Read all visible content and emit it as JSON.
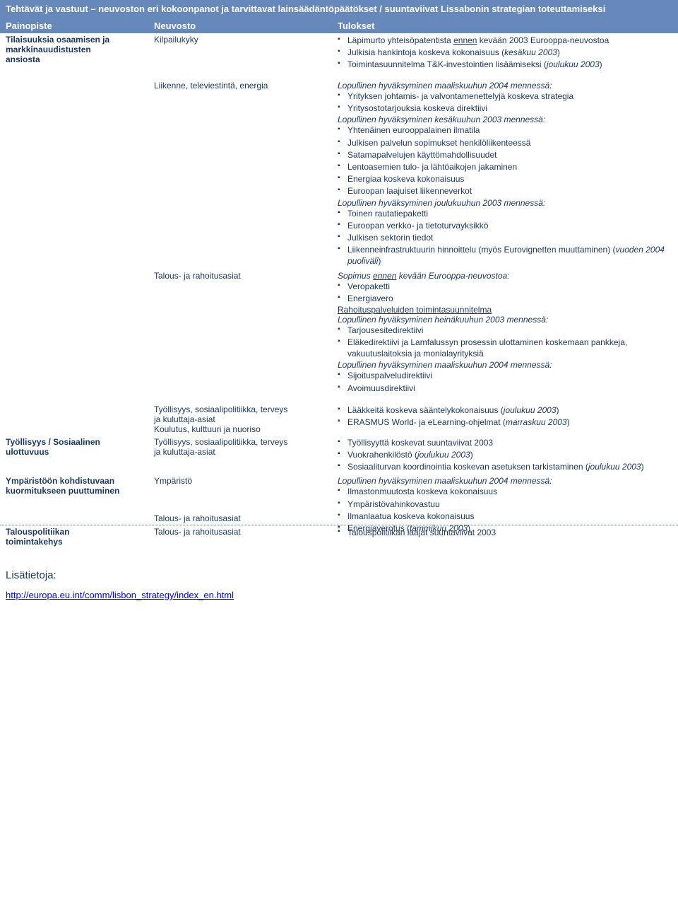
{
  "title": "Tehtävät ja vastuut – neuvoston eri kokoonpanot ja tarvittavat lainsäädäntöpäätökset / suuntaviivat Lissabonin strategian toteuttamiseksi",
  "headers": {
    "c1": "Painopiste",
    "c2": "Neuvosto",
    "c3": "Tulokset"
  },
  "rows": [
    {
      "painopiste_lines": [
        "Tilaisuuksia osaamisen ja",
        "markkinauudistusten",
        "ansiosta"
      ],
      "neuvosto": "Kilpailukyky",
      "tulokset": {
        "type": "bullets",
        "items": [
          {
            "pre": "Läpimurto yhteisöpatentista ",
            "u": "ennen",
            "post": " kevään 2003 Eurooppa-neuvostoa"
          },
          {
            "text": "Julkisia hankintoja koskeva kokonaisuus (",
            "i": "kesäkuu 2003",
            "tail": ")"
          },
          {
            "text": "Toimintasuunnitelma T&K-investointien lisäämiseksi (",
            "i": "joulukuu 2003",
            "tail": ")"
          }
        ]
      }
    },
    {
      "spacer_before": true,
      "painopiste_lines": [],
      "neuvosto": "Liikenne, televiestintä, energia",
      "tulokset": {
        "type": "mixed",
        "lead_i": "Lopullinen hyväksyminen maaliskuuhun 2004 mennessä:",
        "lead_bullets": [
          "Yrityksen johtamis- ja valvontamenettelyjä koskeva strategia",
          "Yritysostotarjouksia koskeva direktiivi"
        ],
        "mid_i": "Lopullinen hyväksyminen kesäkuuhun 2003 mennessä:",
        "mid_bullets": [
          "Yhtenäinen eurooppalainen ilmatila",
          "Julkisen palvelun sopimukset henkilöliikenteessä",
          "Satamapalvelujen käyttömahdollisuudet",
          "Lentoasemien tulo- ja lähtöaikojen jakaminen",
          "Energiaa koskeva kokonaisuus",
          "Euroopan laajuiset liikenneverkot"
        ],
        "tail_i": "Lopullinen hyväksyminen joulukuuhun 2003 mennessä:",
        "tail_bullets": [
          "Toinen rautatiepaketti",
          "Euroopan verkko- ja tietoturvayksikkö",
          "Julkisen sektorin tiedot",
          {
            "text": "Liikenneinfrastruktuurin hinnoittelu (myös Eurovignetten muuttaminen) (",
            "i": "vuoden 2004 puoliväli",
            "tail": ")"
          }
        ]
      }
    },
    {
      "painopiste_lines": [],
      "neuvosto": "Talous- ja rahoitusasiat",
      "tulokset": {
        "type": "sopimus",
        "line1_pre": "Sopimus ",
        "line1_u": "ennen",
        "line1_post": " kevään Eurooppa-neuvostoa:",
        "b1": [
          "Veropaketti",
          "Energiavero"
        ],
        "line2_u": "Rahoituspalveluiden toimintasuunnitelma",
        "line3_i": "Lopullinen hyväksyminen heinäkuuhun 2003 mennessä:",
        "b2": [
          "Tarjousesitedirektiivi",
          "Eläkedirektiivi ja Lamfalussyn prosessin ulottaminen koskemaan pankkeja, vakuutuslaitoksia ja monialayrityksiä"
        ],
        "line4_i": "Lopullinen hyväksyminen maaliskuuhun 2004 mennessä:",
        "b3": [
          "Sijoituspalveludirektiivi",
          "Avoimuusdirektiivi"
        ]
      }
    },
    {
      "spacer_before": true,
      "painopiste_lines": [],
      "neuvosto_lines": [
        "Työllisyys, sosiaalipolitiikka, terveys",
        "ja kuluttaja-asiat",
        "Koulutus, kulttuuri ja nuoriso"
      ],
      "tulokset": {
        "type": "bullets",
        "items": [
          {
            "text": "Lääkkeitä koskeva sääntelykokonaisuus (",
            "i": "joulukuu 2003",
            "tail": ")"
          },
          {
            "text": "ERASMUS World- ja eLearning-ohjelmat (",
            "i": "marraskuu 2003",
            "tail": ")"
          }
        ]
      }
    },
    {
      "painopiste_lines": [
        "Työllisyys / Sosiaalinen",
        "ulottuvuus"
      ],
      "neuvosto_lines": [
        "Työllisyys, sosiaalipolitiikka, terveys",
        "ja kuluttaja-asiat"
      ],
      "tulokset": {
        "type": "bullets",
        "items": [
          {
            "text": "Työllisyyttä koskevat suuntaviivat 2003"
          },
          {
            "text": "Vuokrahenkilöstö (",
            "i": "joulukuu 2003",
            "tail": ")"
          },
          {
            "text": "Sosiaaliturvan koordinointia koskevan asetuksen tarkistaminen (",
            "i": "joulukuu 2003",
            "tail": ")"
          }
        ]
      }
    },
    {
      "painopiste_lines": [
        "Ympäristöön kohdistuvaan",
        "kuormitukseen puuttuminen"
      ],
      "neuvosto": "Ympäristö",
      "neuvosto_extra_after": "Talous- ja rahoitusasiat",
      "tulokset": {
        "type": "ymparisto",
        "lead_i": "Lopullinen hyväksyminen maaliskuuhun 2004 mennessä:",
        "bullets": [
          "Ilmastonmuutosta koskeva kokonaisuus",
          "Ympäristövahinkovastuu",
          "Ilmanlaatua koskeva kokonaisuus",
          {
            "text": "Energiaverotus (",
            "i": "tammikuu 2003",
            "tail": ")"
          }
        ]
      }
    },
    {
      "dotted_before": true,
      "painopiste_lines": [
        "Talouspolitiikan",
        "toimintakehys"
      ],
      "neuvosto": "Talous- ja rahoitusasiat",
      "tulokset": {
        "type": "bullets",
        "items": [
          {
            "text": "Talouspolitiikan laajat suuntaviivat 2003"
          }
        ]
      }
    }
  ],
  "footer": {
    "label": "Lisätietoja:",
    "link": "http://europa.eu.int/comm/lisbon_strategy/index_en.html"
  },
  "colors": {
    "header_bg": "#6688bb",
    "text": "#1a365d"
  }
}
